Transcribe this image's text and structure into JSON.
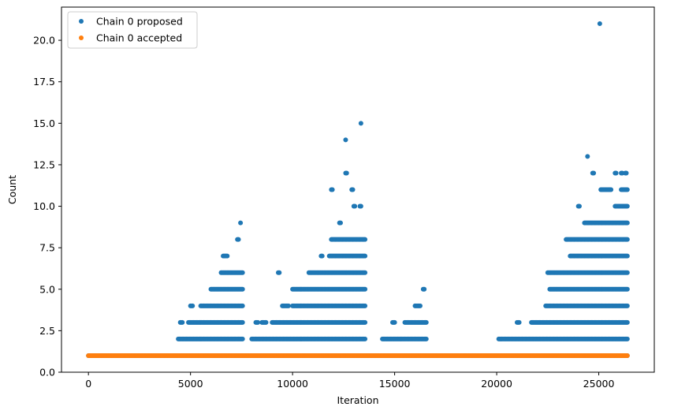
{
  "chart_data": {
    "type": "scatter",
    "xlabel": "Iteration",
    "ylabel": "Count",
    "xlim": [
      -1320,
      27720
    ],
    "ylim": [
      0,
      22
    ],
    "x_ticks": [
      0,
      5000,
      10000,
      15000,
      20000,
      25000
    ],
    "x_tick_labels": [
      "0",
      "5000",
      "10000",
      "15000",
      "20000",
      "25000"
    ],
    "y_ticks": [
      0,
      2.5,
      5,
      7.5,
      10,
      12.5,
      15,
      17.5,
      20
    ],
    "y_tick_labels": [
      "0.0",
      "2.5",
      "5.0",
      "7.5",
      "10.0",
      "12.5",
      "15.0",
      "17.5",
      "20.0"
    ],
    "grid": false,
    "legend_position": "top-left",
    "series": [
      {
        "name": "Chain 0 proposed",
        "color": "#1f77b4",
        "bands": [
          {
            "y": 1,
            "x_ranges": [
              [
                0,
                26400
              ]
            ]
          },
          {
            "y": 2,
            "x_ranges": [
              [
                4400,
                7550
              ],
              [
                8000,
                13550
              ],
              [
                14400,
                16550
              ],
              [
                20100,
                26400
              ]
            ]
          },
          {
            "y": 3,
            "x_ranges": [
              [
                4500,
                4600
              ],
              [
                4900,
                7550
              ],
              [
                8200,
                8300
              ],
              [
                8500,
                8700
              ],
              [
                9000,
                13550
              ],
              [
                14900,
                15000
              ],
              [
                15500,
                16550
              ],
              [
                21000,
                21100
              ],
              [
                21700,
                26400
              ]
            ]
          },
          {
            "y": 4,
            "x_ranges": [
              [
                5000,
                5100
              ],
              [
                5500,
                7550
              ],
              [
                9500,
                9800
              ],
              [
                10000,
                13550
              ],
              [
                16000,
                16250
              ],
              [
                22400,
                26400
              ]
            ]
          },
          {
            "y": 5,
            "x_ranges": [
              [
                6000,
                7550
              ],
              [
                10000,
                13550
              ],
              [
                16400,
                16450
              ],
              [
                22600,
                26400
              ]
            ]
          },
          {
            "y": 6,
            "x_ranges": [
              [
                6500,
                7550
              ],
              [
                9300,
                9350
              ],
              [
                10800,
                13550
              ],
              [
                22500,
                26400
              ]
            ]
          },
          {
            "y": 7,
            "x_ranges": [
              [
                6600,
                6800
              ],
              [
                11400,
                11450
              ],
              [
                11800,
                13550
              ],
              [
                23600,
                26400
              ]
            ]
          },
          {
            "y": 8,
            "x_ranges": [
              [
                7300,
                7350
              ],
              [
                11900,
                13550
              ],
              [
                23400,
                26400
              ]
            ]
          },
          {
            "y": 9,
            "x_ranges": [
              [
                12300,
                12350
              ],
              [
                24300,
                26400
              ]
            ]
          },
          {
            "y": 10,
            "x_ranges": [
              [
                13000,
                13050
              ],
              [
                13300,
                13350
              ],
              [
                24000,
                24050
              ],
              [
                25800,
                26400
              ]
            ]
          },
          {
            "y": 11,
            "x_ranges": [
              [
                11900,
                11950
              ],
              [
                12900,
                12950
              ],
              [
                25100,
                25600
              ],
              [
                26100,
                26400
              ]
            ]
          },
          {
            "y": 12,
            "x_ranges": [
              [
                12600,
                12650
              ],
              [
                24700,
                24750
              ],
              [
                25800,
                25850
              ],
              [
                26100,
                26150
              ],
              [
                26300,
                26350
              ]
            ]
          }
        ],
        "points": [
          {
            "x": 7450,
            "y": 9
          },
          {
            "x": 12600,
            "y": 14
          },
          {
            "x": 13350,
            "y": 15
          },
          {
            "x": 24450,
            "y": 13
          },
          {
            "x": 25050,
            "y": 21
          }
        ]
      },
      {
        "name": "Chain 0 accepted",
        "color": "#ff7f0e",
        "bands": [
          {
            "y": 1,
            "x_ranges": [
              [
                0,
                26400
              ]
            ]
          }
        ],
        "points": []
      }
    ]
  }
}
